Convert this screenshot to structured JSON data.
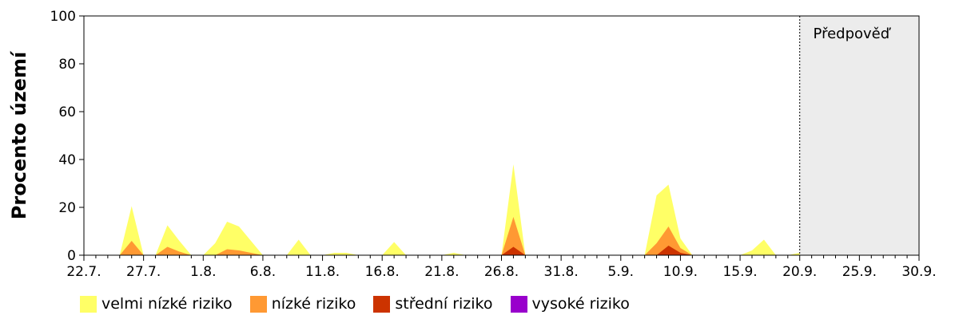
{
  "chart_data": {
    "type": "area",
    "title": "",
    "ylabel": "Procento území",
    "xlabel": "",
    "ylim": [
      0,
      100
    ],
    "yticks": [
      0,
      20,
      40,
      60,
      80,
      100
    ],
    "x_range": [
      "22.7.",
      "30.9."
    ],
    "x_days_total": 70,
    "xticks": [
      "22.7.",
      "27.7.",
      "1.8.",
      "6.8.",
      "11.8.",
      "16.8.",
      "21.8.",
      "26.8.",
      "31.8.",
      "5.9.",
      "10.9.",
      "15.9.",
      "20.9.",
      "25.9.",
      "30.9."
    ],
    "grid": false,
    "legend_position": "bottom",
    "forecast": {
      "label": "Předpověď",
      "start": "20.9.",
      "end": "30.9.",
      "color": "#ececec"
    },
    "x": [
      "22.7.",
      "23.7.",
      "24.7.",
      "25.7.",
      "26.7.",
      "27.7.",
      "28.7.",
      "29.7.",
      "30.7.",
      "31.7.",
      "1.8.",
      "2.8.",
      "3.8.",
      "4.8.",
      "5.8.",
      "6.8.",
      "7.8.",
      "8.8.",
      "9.8.",
      "10.8.",
      "11.8.",
      "12.8.",
      "13.8.",
      "14.8.",
      "15.8.",
      "16.8.",
      "17.8.",
      "18.8.",
      "19.8.",
      "20.8.",
      "21.8.",
      "22.8.",
      "23.8.",
      "24.8.",
      "25.8.",
      "26.8.",
      "27.8.",
      "28.8.",
      "29.8.",
      "30.8.",
      "31.8.",
      "1.9.",
      "2.9.",
      "3.9.",
      "4.9.",
      "5.9.",
      "6.9.",
      "7.9.",
      "8.9.",
      "9.9.",
      "10.9.",
      "11.9.",
      "12.9.",
      "13.9.",
      "14.9.",
      "15.9.",
      "16.9.",
      "17.9.",
      "18.9.",
      "19.9.",
      "20.9."
    ],
    "series": [
      {
        "name": "velmi nízké riziko",
        "color": "#ffff66",
        "values": [
          0,
          0,
          0,
          0,
          20.5,
          0,
          0,
          12.5,
          6,
          0,
          0,
          5,
          14,
          12,
          6,
          0,
          0,
          0,
          6.5,
          0,
          0,
          1,
          1,
          0,
          0,
          0,
          5.5,
          0,
          0,
          0,
          0,
          1,
          0,
          0,
          0,
          0,
          38,
          0,
          0,
          0,
          0,
          0,
          0,
          0,
          0,
          0,
          0,
          0,
          25,
          29.5,
          7,
          0,
          0,
          0,
          0,
          0,
          2,
          6.5,
          0,
          0,
          1
        ]
      },
      {
        "name": "nízké riziko",
        "color": "#ff9933",
        "values": [
          0,
          0,
          0,
          0,
          6,
          0,
          0,
          3.5,
          1.5,
          0,
          0,
          0,
          2.5,
          2,
          1,
          0,
          0,
          0,
          0,
          0,
          0,
          0,
          0,
          0,
          0,
          0,
          0,
          0,
          0,
          0,
          0,
          0,
          0,
          0,
          0,
          0,
          16,
          0,
          0,
          0,
          0,
          0,
          0,
          0,
          0,
          0,
          0,
          0,
          5,
          12,
          3,
          0,
          0,
          0,
          0,
          0,
          0,
          0,
          0,
          0,
          0
        ]
      },
      {
        "name": "střední riziko",
        "color": "#cc3300",
        "values": [
          0,
          0,
          0,
          0,
          0,
          0,
          0,
          0,
          0,
          0,
          0,
          0,
          0,
          0,
          0,
          0,
          0,
          0,
          0,
          0,
          0,
          0,
          0,
          0,
          0,
          0,
          0,
          0,
          0,
          0,
          0,
          0,
          0,
          0,
          0,
          0,
          3.5,
          0,
          0,
          0,
          0,
          0,
          0,
          0,
          0,
          0,
          0,
          0,
          0,
          4,
          1,
          0,
          0,
          0,
          0,
          0,
          0,
          0,
          0,
          0,
          0
        ]
      },
      {
        "name": "vysoké riziko",
        "color": "#9900cc",
        "values": [
          0,
          0,
          0,
          0,
          0,
          0,
          0,
          0,
          0,
          0,
          0,
          0,
          0,
          0,
          0,
          0,
          0,
          0,
          0,
          0,
          0,
          0,
          0,
          0,
          0,
          0,
          0,
          0,
          0,
          0,
          0,
          0,
          0,
          0,
          0,
          0,
          0,
          0,
          0,
          0,
          0,
          0,
          0,
          0,
          0,
          0,
          0,
          0,
          0,
          0,
          0,
          0,
          0,
          0,
          0,
          0,
          0,
          0,
          0,
          0,
          0
        ]
      }
    ]
  }
}
